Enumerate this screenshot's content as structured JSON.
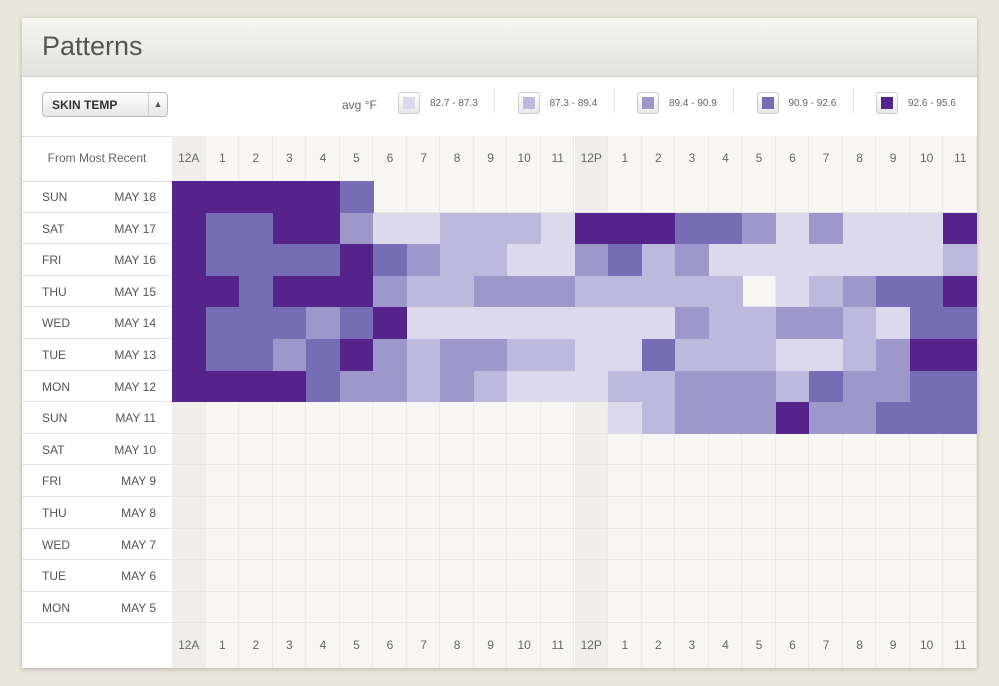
{
  "header": {
    "title": "Patterns"
  },
  "toolbar": {
    "metric": "SKIN TEMP",
    "legend_title": "avg °F",
    "legend": [
      {
        "label": "82.7 - 87.3",
        "color": "#dcd9ec"
      },
      {
        "label": "87.3 - 89.4",
        "color": "#bdb9dd"
      },
      {
        "label": "89.4 - 90.9",
        "color": "#9e98ca"
      },
      {
        "label": "90.9 - 92.6",
        "color": "#776db4"
      },
      {
        "label": "92.6 - 95.6",
        "color": "#55248b"
      }
    ]
  },
  "grid": {
    "corner_label": "From Most Recent",
    "hours": [
      "12A",
      "1",
      "2",
      "3",
      "4",
      "5",
      "6",
      "7",
      "8",
      "9",
      "10",
      "11",
      "12P",
      "1",
      "2",
      "3",
      "4",
      "5",
      "6",
      "7",
      "8",
      "9",
      "10",
      "11"
    ],
    "rows": [
      {
        "day": "SUN",
        "date": "MAY 18",
        "cells": [
          4,
          4,
          4,
          4,
          4,
          3,
          null,
          null,
          null,
          null,
          null,
          null,
          null,
          null,
          null,
          null,
          null,
          null,
          null,
          null,
          null,
          null,
          null,
          null
        ]
      },
      {
        "day": "SAT",
        "date": "MAY 17",
        "cells": [
          4,
          3,
          3,
          4,
          4,
          2,
          0,
          0,
          1,
          1,
          1,
          0,
          4,
          4,
          4,
          3,
          3,
          2,
          0,
          2,
          0,
          0,
          0,
          4
        ]
      },
      {
        "day": "FRI",
        "date": "MAY 16",
        "cells": [
          4,
          3,
          3,
          3,
          3,
          4,
          3,
          2,
          1,
          1,
          0,
          0,
          2,
          3,
          1,
          2,
          0,
          0,
          0,
          0,
          0,
          0,
          0,
          1
        ]
      },
      {
        "day": "THU",
        "date": "MAY 15",
        "cells": [
          4,
          4,
          3,
          4,
          4,
          4,
          2,
          1,
          1,
          2,
          2,
          2,
          1,
          1,
          1,
          1,
          1,
          null,
          0,
          1,
          2,
          3,
          3,
          4
        ]
      },
      {
        "day": "WED",
        "date": "MAY 14",
        "cells": [
          4,
          3,
          3,
          3,
          2,
          3,
          4,
          0,
          0,
          0,
          0,
          0,
          0,
          0,
          0,
          2,
          1,
          1,
          2,
          2,
          1,
          0,
          3,
          3
        ]
      },
      {
        "day": "TUE",
        "date": "MAY 13",
        "cells": [
          4,
          3,
          3,
          2,
          3,
          4,
          2,
          1,
          2,
          2,
          1,
          1,
          0,
          0,
          3,
          1,
          1,
          1,
          0,
          0,
          1,
          2,
          4,
          4
        ]
      },
      {
        "day": "MON",
        "date": "MAY 12",
        "cells": [
          4,
          4,
          4,
          4,
          3,
          2,
          2,
          1,
          2,
          1,
          0,
          0,
          0,
          1,
          1,
          2,
          2,
          2,
          1,
          3,
          2,
          2,
          3,
          3
        ]
      },
      {
        "day": "SUN",
        "date": "MAY 11",
        "cells": [
          null,
          null,
          null,
          null,
          null,
          null,
          null,
          null,
          null,
          null,
          null,
          null,
          null,
          0,
          1,
          2,
          2,
          2,
          4,
          2,
          2,
          3,
          3,
          3
        ]
      },
      {
        "day": "SAT",
        "date": "MAY 10",
        "cells": [
          null,
          null,
          null,
          null,
          null,
          null,
          null,
          null,
          null,
          null,
          null,
          null,
          null,
          null,
          null,
          null,
          null,
          null,
          null,
          null,
          null,
          null,
          null,
          null
        ]
      },
      {
        "day": "FRI",
        "date": "MAY 9",
        "cells": [
          null,
          null,
          null,
          null,
          null,
          null,
          null,
          null,
          null,
          null,
          null,
          null,
          null,
          null,
          null,
          null,
          null,
          null,
          null,
          null,
          null,
          null,
          null,
          null
        ]
      },
      {
        "day": "THU",
        "date": "MAY 8",
        "cells": [
          null,
          null,
          null,
          null,
          null,
          null,
          null,
          null,
          null,
          null,
          null,
          null,
          null,
          null,
          null,
          null,
          null,
          null,
          null,
          null,
          null,
          null,
          null,
          null
        ]
      },
      {
        "day": "WED",
        "date": "MAY 7",
        "cells": [
          null,
          null,
          null,
          null,
          null,
          null,
          null,
          null,
          null,
          null,
          null,
          null,
          null,
          null,
          null,
          null,
          null,
          null,
          null,
          null,
          null,
          null,
          null,
          null
        ]
      },
      {
        "day": "TUE",
        "date": "MAY 6",
        "cells": [
          null,
          null,
          null,
          null,
          null,
          null,
          null,
          null,
          null,
          null,
          null,
          null,
          null,
          null,
          null,
          null,
          null,
          null,
          null,
          null,
          null,
          null,
          null,
          null
        ]
      },
      {
        "day": "MON",
        "date": "MAY 5",
        "cells": [
          null,
          null,
          null,
          null,
          null,
          null,
          null,
          null,
          null,
          null,
          null,
          null,
          null,
          null,
          null,
          null,
          null,
          null,
          null,
          null,
          null,
          null,
          null,
          null
        ]
      }
    ]
  }
}
